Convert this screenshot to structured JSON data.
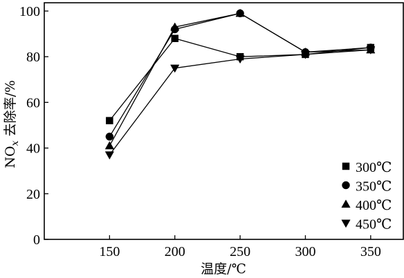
{
  "chart_data": {
    "type": "line",
    "xlabel": "温度/℃",
    "ylabel_main": "NO",
    "ylabel_sub": "x",
    "ylabel_rest": " 去除率/%",
    "xlim": [
      100,
      375
    ],
    "ylim": [
      0,
      100
    ],
    "x_ticks": [
      150,
      200,
      250,
      300,
      350
    ],
    "y_ticks": [
      0,
      20,
      40,
      60,
      80,
      100
    ],
    "legend_position": "bottom-right",
    "series": [
      {
        "name": "300℃",
        "marker": "square",
        "x": [
          150,
          200,
          250,
          300,
          350
        ],
        "y": [
          52,
          88,
          80,
          81,
          84
        ]
      },
      {
        "name": "350℃",
        "marker": "circle",
        "x": [
          150,
          200,
          250,
          300,
          350
        ],
        "y": [
          45,
          92,
          99,
          82,
          84
        ]
      },
      {
        "name": "400℃",
        "marker": "triangle-up",
        "x": [
          150,
          200,
          250,
          300,
          350
        ],
        "y": [
          41,
          93,
          99,
          82,
          83
        ]
      },
      {
        "name": "450℃",
        "marker": "triangle-down",
        "x": [
          150,
          200,
          250,
          300,
          350
        ],
        "y": [
          37,
          75,
          79,
          81,
          83
        ]
      }
    ]
  }
}
